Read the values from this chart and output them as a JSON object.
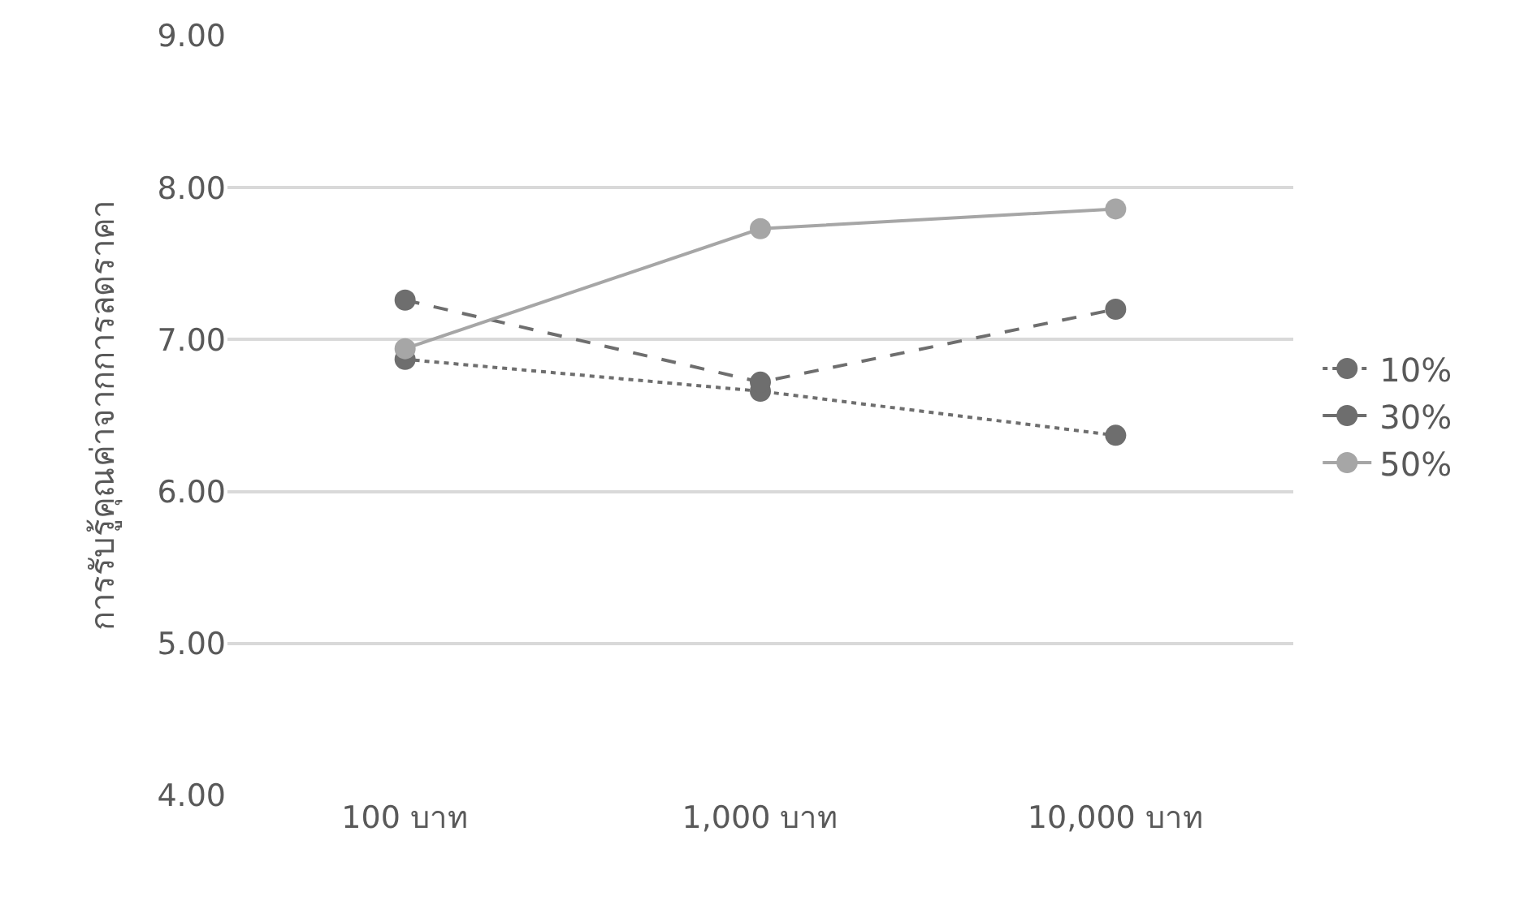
{
  "chart_data": {
    "type": "line",
    "ylabel": "การรับรู้คุณค่าจากการลดราคา",
    "categories": [
      "100 บาท",
      "1,000 บาท",
      "10,000 บาท"
    ],
    "series": [
      {
        "name": "10%",
        "color": "#6e6e6e",
        "line_style": "dotted",
        "values": [
          6.87,
          6.66,
          6.37
        ]
      },
      {
        "name": "30%",
        "color": "#6e6e6e",
        "line_style": "dashed",
        "values": [
          7.26,
          6.72,
          7.2
        ]
      },
      {
        "name": "50%",
        "color": "#a6a6a6",
        "line_style": "solid",
        "values": [
          6.94,
          7.73,
          7.86
        ]
      }
    ],
    "ylim": [
      4,
      9
    ],
    "yticks": [
      {
        "value": 4,
        "label": "4.00"
      },
      {
        "value": 5,
        "label": "5.00"
      },
      {
        "value": 6,
        "label": "6.00"
      },
      {
        "value": 7,
        "label": "7.00"
      },
      {
        "value": 8,
        "label": "8.00"
      },
      {
        "value": 9,
        "label": "9.00"
      }
    ],
    "grid": "y",
    "legend": "right",
    "marker": "circle"
  }
}
